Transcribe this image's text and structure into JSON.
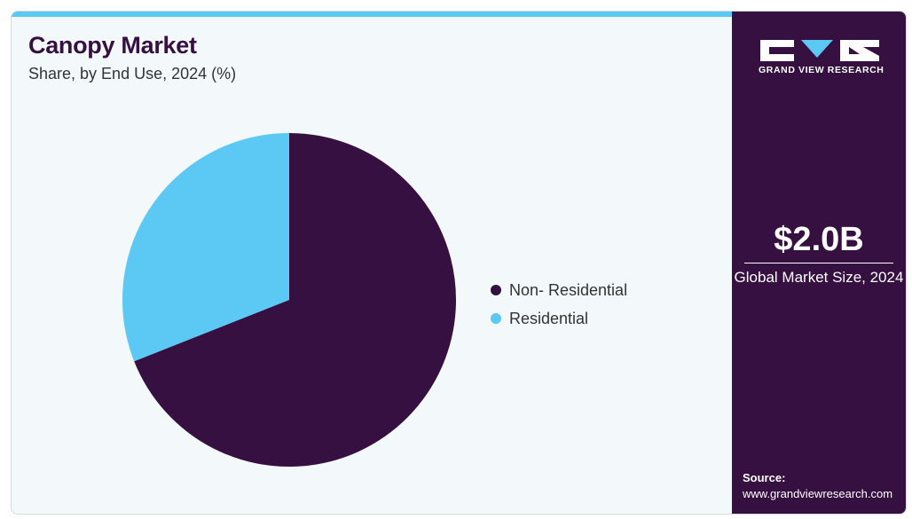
{
  "header": {
    "title": "Canopy Market",
    "subtitle": "Share, by End Use, 2024 (%)"
  },
  "chart_data": {
    "type": "pie",
    "title": "Canopy Market",
    "subtitle": "Share, by End Use, 2024 (%)",
    "categories": [
      "Non- Residential",
      "Residential"
    ],
    "values": [
      69,
      31
    ],
    "colors": [
      "#351040",
      "#5cc8f4"
    ],
    "legend_position": "right",
    "start_angle": "12 o'clock, clockwise"
  },
  "side_panel": {
    "brand": "GRAND VIEW RESEARCH",
    "market_size": "$2.0B",
    "market_label": "Global Market Size, 2024",
    "source_label": "Source:",
    "source_url": "www.grandviewresearch.com"
  },
  "colors": {
    "panel_bg": "#351040",
    "accent": "#5cc8f4",
    "card_bg": "#f3f8fb"
  }
}
